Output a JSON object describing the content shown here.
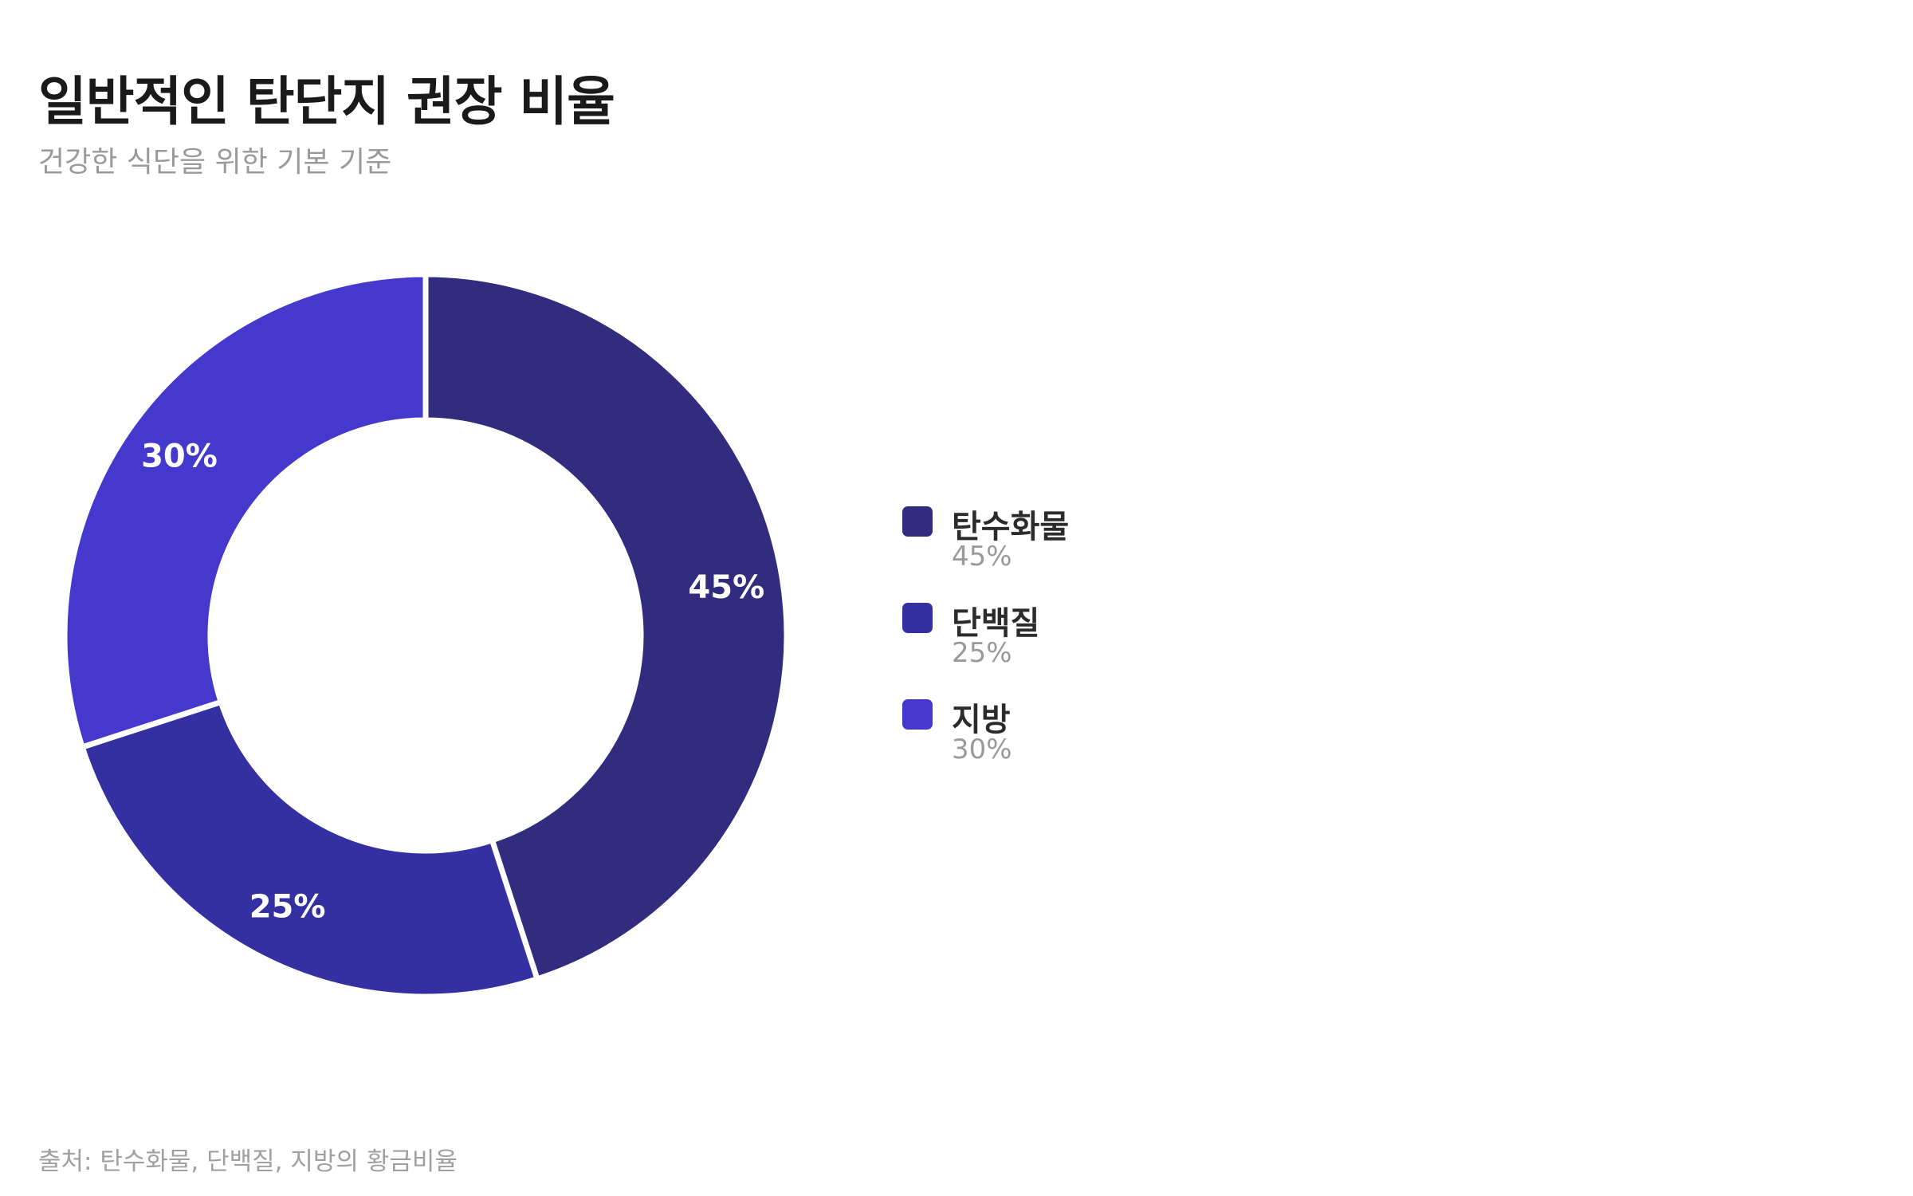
{
  "header": {
    "title": "일반적인 탄단지 권장 비율",
    "subtitle": "건강한 식단을 위한 기본 기준"
  },
  "footer": {
    "source": "출처: 탄수화물, 단백질, 지방의 황금비율"
  },
  "chart_data": {
    "type": "pie",
    "variant": "donut",
    "title": "일반적인 탄단지 권장 비율",
    "subtitle": "건강한 식단을 위한 기본 기준",
    "legend_position": "right",
    "slices": [
      {
        "label": "탄수화물",
        "value": 45,
        "display": "45%",
        "color": "#312c7e"
      },
      {
        "label": "단백질",
        "value": 25,
        "display": "25%",
        "color": "#3530a1"
      },
      {
        "label": "지방",
        "value": 30,
        "display": "30%",
        "color": "#4439cc"
      }
    ]
  }
}
